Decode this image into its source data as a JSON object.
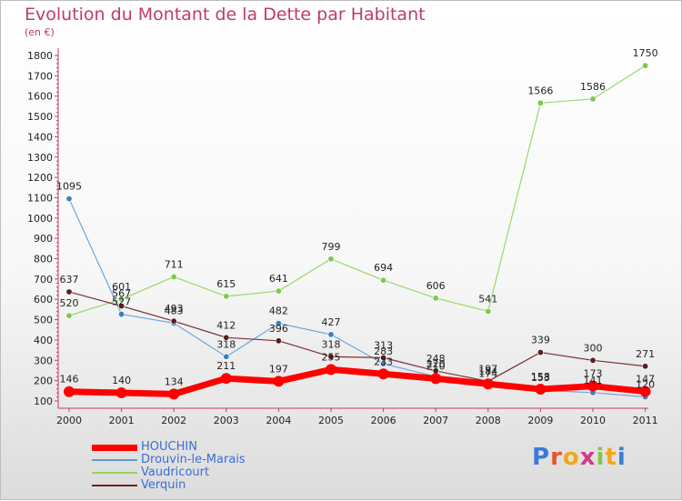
{
  "title": "Evolution du Montant de la Dette par Habitant",
  "subtitle": "(en €)",
  "logo": {
    "letters": [
      "P",
      "r",
      "o",
      "x",
      "i",
      "t",
      "i"
    ]
  },
  "colors": {
    "title": "#c0396b",
    "houchin": "#ff0000",
    "drouvin": "#5b9bd5",
    "vaudricourt": "#8fd45e",
    "verquin": "#6b2222"
  },
  "chart_data": {
    "type": "line",
    "title": "Evolution du Montant de la Dette par Habitant",
    "ylabel": "(en €)",
    "xlabel": "",
    "x": [
      "2000",
      "2001",
      "2002",
      "2003",
      "2004",
      "2005",
      "2006",
      "2007",
      "2008",
      "2009",
      "2010",
      "2011"
    ],
    "ylim": [
      100,
      1800
    ],
    "yticks": [
      100,
      200,
      300,
      400,
      500,
      600,
      700,
      800,
      900,
      1000,
      1100,
      1200,
      1300,
      1400,
      1500,
      1600,
      1700,
      1800
    ],
    "grid": false,
    "legend": "bottom-left",
    "series": [
      {
        "name": "HOUCHIN",
        "key": "houchin",
        "values": [
          146,
          140,
          134,
          211,
          197,
          255,
          233,
          210,
          184,
          158,
          173,
          147
        ]
      },
      {
        "name": "Drouvin-le-Marais",
        "key": "drouvin",
        "values": [
          1095,
          527,
          483,
          318,
          482,
          427,
          283,
          220,
          174,
          153,
          141,
          120
        ]
      },
      {
        "name": "Vaudricourt",
        "key": "vaudricourt",
        "values": [
          520,
          601,
          711,
          615,
          641,
          799,
          694,
          606,
          541,
          1566,
          1586,
          1750
        ]
      },
      {
        "name": "Verquin",
        "key": "verquin",
        "values": [
          637,
          567,
          493,
          412,
          396,
          318,
          313,
          248,
          197,
          339,
          300,
          271
        ]
      }
    ]
  }
}
